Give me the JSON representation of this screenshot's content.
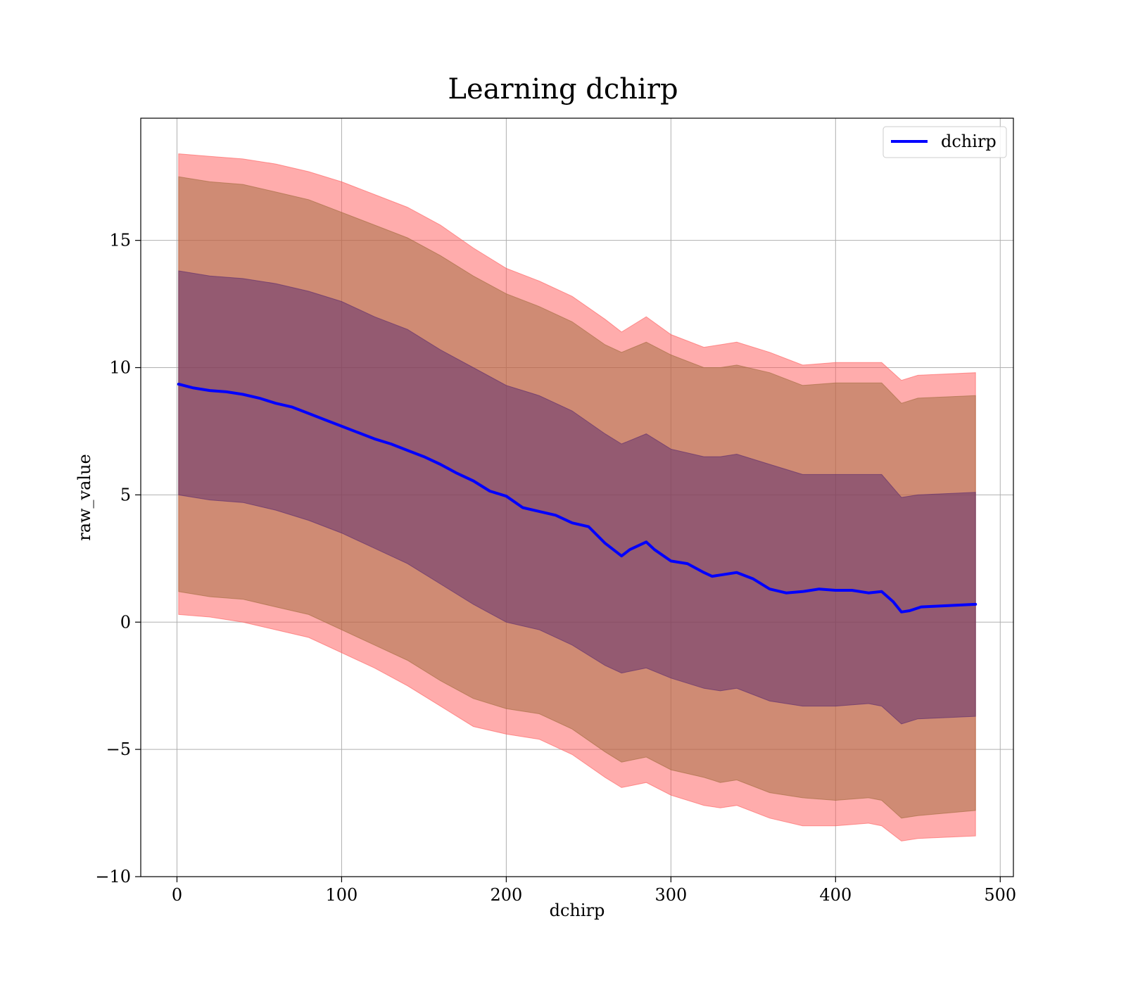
{
  "chart_data": {
    "type": "line",
    "title": "Learning dchirp",
    "xlabel": "dchirp",
    "ylabel": "raw_value",
    "xlim": [
      -22,
      508
    ],
    "ylim": [
      -10,
      19.8
    ],
    "x_ticks": [
      0,
      100,
      200,
      300,
      400,
      500
    ],
    "x_tick_labels": [
      "0",
      "100",
      "200",
      "300",
      "400",
      "500"
    ],
    "y_ticks": [
      -10,
      -5,
      0,
      5,
      10,
      15
    ],
    "y_tick_labels": [
      "−10",
      "−5",
      "0",
      "5",
      "10",
      "15"
    ],
    "grid": true,
    "legend": {
      "position": "top-right",
      "entries": [
        "dchirp"
      ]
    },
    "colors": {
      "line": "#0000ff",
      "band_outer": "#ff5a5a",
      "band_middle": "#a06a3c",
      "band_inner": "#5a2a6e"
    },
    "series": [
      {
        "name": "dchirp",
        "x": [
          1,
          10,
          20,
          30,
          40,
          50,
          60,
          70,
          80,
          90,
          100,
          110,
          120,
          130,
          140,
          150,
          160,
          170,
          180,
          190,
          200,
          210,
          220,
          230,
          240,
          250,
          260,
          270,
          275,
          285,
          290,
          300,
          310,
          320,
          325,
          330,
          340,
          350,
          360,
          370,
          380,
          390,
          400,
          410,
          420,
          428,
          435,
          440,
          445,
          452,
          485
        ],
        "values": [
          9.35,
          9.2,
          9.1,
          9.05,
          8.95,
          8.8,
          8.6,
          8.45,
          8.2,
          7.95,
          7.7,
          7.45,
          7.2,
          7.0,
          6.75,
          6.5,
          6.2,
          5.85,
          5.55,
          5.15,
          4.95,
          4.5,
          4.35,
          4.2,
          3.9,
          3.75,
          3.1,
          2.6,
          2.85,
          3.15,
          2.85,
          2.4,
          2.3,
          1.95,
          1.8,
          1.85,
          1.95,
          1.7,
          1.3,
          1.15,
          1.2,
          1.3,
          1.25,
          1.25,
          1.15,
          1.2,
          0.8,
          0.4,
          0.45,
          0.6,
          0.7
        ]
      }
    ],
    "bands": [
      {
        "level": "outer",
        "x": [
          1,
          20,
          40,
          60,
          80,
          100,
          120,
          140,
          160,
          180,
          200,
          220,
          240,
          260,
          270,
          285,
          300,
          320,
          330,
          340,
          360,
          380,
          400,
          420,
          428,
          440,
          450,
          485
        ],
        "upper": [
          18.4,
          18.3,
          18.2,
          18.0,
          17.7,
          17.3,
          16.8,
          16.3,
          15.6,
          14.7,
          13.9,
          13.4,
          12.8,
          11.9,
          11.4,
          12.0,
          11.3,
          10.8,
          10.9,
          11.0,
          10.6,
          10.1,
          10.2,
          10.2,
          10.2,
          9.5,
          9.7,
          9.8
        ],
        "lower": [
          0.3,
          0.2,
          0.0,
          -0.3,
          -0.6,
          -1.2,
          -1.8,
          -2.5,
          -3.3,
          -4.1,
          -4.4,
          -4.6,
          -5.2,
          -6.1,
          -6.5,
          -6.3,
          -6.8,
          -7.2,
          -7.3,
          -7.2,
          -7.7,
          -8.0,
          -8.0,
          -7.9,
          -8.0,
          -8.6,
          -8.5,
          -8.4
        ]
      },
      {
        "level": "middle",
        "x": [
          1,
          20,
          40,
          60,
          80,
          100,
          120,
          140,
          160,
          180,
          200,
          220,
          240,
          260,
          270,
          285,
          300,
          320,
          330,
          340,
          360,
          380,
          400,
          420,
          428,
          440,
          450,
          485
        ],
        "upper": [
          17.5,
          17.3,
          17.2,
          16.9,
          16.6,
          16.1,
          15.6,
          15.1,
          14.4,
          13.6,
          12.9,
          12.4,
          11.8,
          10.9,
          10.6,
          11.0,
          10.5,
          10.0,
          10.0,
          10.1,
          9.8,
          9.3,
          9.4,
          9.4,
          9.4,
          8.6,
          8.8,
          8.9
        ],
        "lower": [
          1.2,
          1.0,
          0.9,
          0.6,
          0.3,
          -0.3,
          -0.9,
          -1.5,
          -2.3,
          -3.0,
          -3.4,
          -3.6,
          -4.2,
          -5.1,
          -5.5,
          -5.3,
          -5.8,
          -6.1,
          -6.3,
          -6.2,
          -6.7,
          -6.9,
          -7.0,
          -6.9,
          -7.0,
          -7.7,
          -7.6,
          -7.4
        ]
      },
      {
        "level": "inner",
        "x": [
          1,
          20,
          40,
          60,
          80,
          100,
          120,
          140,
          160,
          180,
          200,
          220,
          240,
          260,
          270,
          285,
          300,
          320,
          330,
          340,
          360,
          380,
          400,
          420,
          428,
          440,
          450,
          485
        ],
        "upper": [
          13.8,
          13.6,
          13.5,
          13.3,
          13.0,
          12.6,
          12.0,
          11.5,
          10.7,
          10.0,
          9.3,
          8.9,
          8.3,
          7.4,
          7.0,
          7.4,
          6.8,
          6.5,
          6.5,
          6.6,
          6.2,
          5.8,
          5.8,
          5.8,
          5.8,
          4.9,
          5.0,
          5.1
        ],
        "lower": [
          5.0,
          4.8,
          4.7,
          4.4,
          4.0,
          3.5,
          2.9,
          2.3,
          1.5,
          0.7,
          0.0,
          -0.3,
          -0.9,
          -1.7,
          -2.0,
          -1.8,
          -2.2,
          -2.6,
          -2.7,
          -2.6,
          -3.1,
          -3.3,
          -3.3,
          -3.2,
          -3.3,
          -4.0,
          -3.8,
          -3.7
        ]
      }
    ]
  }
}
